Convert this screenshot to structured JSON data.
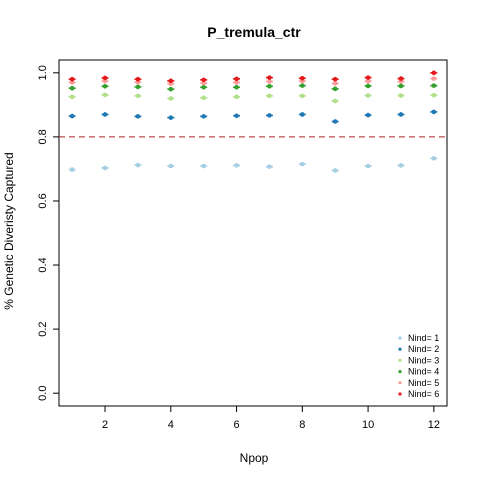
{
  "chart_data": {
    "type": "scatter",
    "title": "P_tremula_ctr",
    "xlabel": "Npop",
    "ylabel": "% Genetic Diveristy Captured",
    "xlim": [
      0.6,
      12.4
    ],
    "ylim": [
      -0.04,
      1.04
    ],
    "x_ticks": [
      2,
      4,
      6,
      8,
      10,
      12
    ],
    "y_ticks": [
      0.0,
      0.2,
      0.4,
      0.6,
      0.8,
      1.0
    ],
    "x_tick_labels": [
      "2",
      "4",
      "6",
      "8",
      "10",
      "12"
    ],
    "y_tick_labels": [
      "0.0",
      "0.2",
      "0.4",
      "0.6",
      "0.8",
      "1.0"
    ],
    "grid": false,
    "legend_position": "bottom-right",
    "reference_line": {
      "y": 0.8,
      "color": "#b22222",
      "style": "dashed"
    },
    "x": [
      1,
      2,
      3,
      4,
      5,
      6,
      7,
      8,
      9,
      10,
      11,
      12
    ],
    "series": [
      {
        "name": "Nind= 1",
        "color": "#a6cee3",
        "values": [
          0.698,
          0.703,
          0.712,
          0.709,
          0.709,
          0.711,
          0.707,
          0.715,
          0.695,
          0.709,
          0.711,
          0.733
        ]
      },
      {
        "name": "Nind= 2",
        "color": "#1f78b4",
        "values": [
          0.865,
          0.87,
          0.864,
          0.86,
          0.864,
          0.866,
          0.867,
          0.87,
          0.848,
          0.868,
          0.87,
          0.878
        ]
      },
      {
        "name": "Nind= 3",
        "color": "#b2df8a",
        "values": [
          0.925,
          0.931,
          0.928,
          0.92,
          0.922,
          0.925,
          0.928,
          0.928,
          0.912,
          0.929,
          0.929,
          0.93
        ]
      },
      {
        "name": "Nind= 4",
        "color": "#33a02c",
        "values": [
          0.952,
          0.958,
          0.956,
          0.949,
          0.955,
          0.955,
          0.958,
          0.96,
          0.95,
          0.959,
          0.959,
          0.96
        ]
      },
      {
        "name": "Nind= 5",
        "color": "#fb9a99",
        "values": [
          0.97,
          0.974,
          0.971,
          0.966,
          0.968,
          0.97,
          0.973,
          0.974,
          0.967,
          0.974,
          0.973,
          0.982
        ]
      },
      {
        "name": "Nind= 6",
        "color": "#e31a1c",
        "values": [
          0.98,
          0.984,
          0.98,
          0.975,
          0.978,
          0.981,
          0.985,
          0.983,
          0.98,
          0.985,
          0.982,
          1.0
        ]
      }
    ]
  }
}
